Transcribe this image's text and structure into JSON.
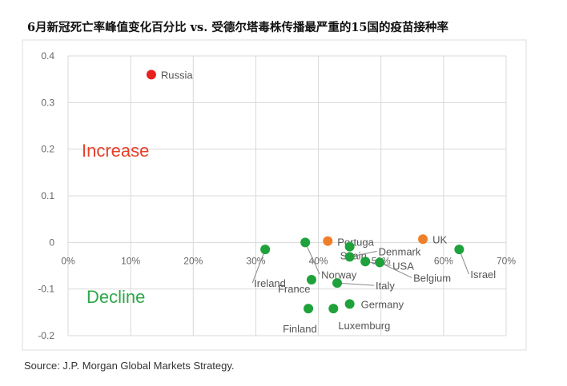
{
  "chart_data": {
    "type": "scatter",
    "title": "6月新冠死亡率峰值变化百分比 vs. 受德尔塔毒株传播最严重的15国的疫苗接种率",
    "xlabel": "",
    "ylabel": "",
    "xlim": [
      0,
      70
    ],
    "ylim": [
      -0.2,
      0.4
    ],
    "xticks": [
      "0%",
      "10%",
      "20%",
      "30%",
      "40%",
      "50%",
      "60%",
      "70%"
    ],
    "yticks": [
      "0.4",
      "0.3",
      "0.2",
      "0.1",
      "0",
      "-0.1",
      "-0.2"
    ],
    "grid": true,
    "annotations": [
      {
        "text": "Increase",
        "color": "#e8402a"
      },
      {
        "text": "Decline",
        "color": "#2ea84a"
      }
    ],
    "colors": {
      "red": "#e8201e",
      "orange": "#f07f2a",
      "green": "#1fa23c"
    },
    "points": [
      {
        "label": "Russia",
        "x": 13.3,
        "y": 0.36,
        "color": "red"
      },
      {
        "label": "Portuga",
        "x": 41.5,
        "y": 0.003,
        "color": "orange"
      },
      {
        "label": "UK",
        "x": 56.7,
        "y": 0.007,
        "color": "orange"
      },
      {
        "label": "Ireland",
        "x": 31.5,
        "y": -0.015,
        "color": "green"
      },
      {
        "label": "Norway",
        "x": 37.9,
        "y": 0.0,
        "color": "green"
      },
      {
        "label": "Spain",
        "x": 45.0,
        "y": -0.009,
        "color": "green"
      },
      {
        "label": "Denmark",
        "x": 45.0,
        "y": -0.031,
        "color": "green"
      },
      {
        "label": "USA",
        "x": 47.5,
        "y": -0.041,
        "color": "green"
      },
      {
        "label": "Belgium",
        "x": 49.8,
        "y": -0.043,
        "color": "green"
      },
      {
        "label": "Israel",
        "x": 62.5,
        "y": -0.015,
        "color": "green"
      },
      {
        "label": "France",
        "x": 38.9,
        "y": -0.08,
        "color": "green"
      },
      {
        "label": "Italy",
        "x": 43.0,
        "y": -0.087,
        "color": "green"
      },
      {
        "label": "Germany",
        "x": 45.0,
        "y": -0.132,
        "color": "green"
      },
      {
        "label": "Finland",
        "x": 38.4,
        "y": -0.142,
        "color": "green"
      },
      {
        "label": "Luxemburg",
        "x": 42.4,
        "y": -0.142,
        "color": "green"
      }
    ]
  },
  "source": "Source: J.P. Morgan Global Markets Strategy."
}
